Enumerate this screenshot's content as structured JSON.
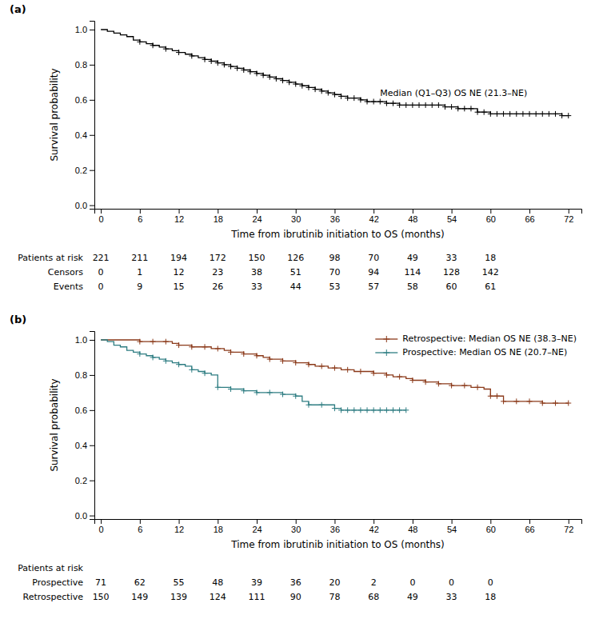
{
  "chart_data": [
    {
      "type": "step",
      "title": "(a)",
      "xlabel": "Time from ibrutinib initiation to OS (months)",
      "ylabel": "Survival probability",
      "xlim": [
        -1,
        74
      ],
      "ylim": [
        -0.02,
        1.05
      ],
      "xticks": [
        0,
        6,
        12,
        18,
        24,
        30,
        36,
        42,
        48,
        54,
        60,
        66,
        72
      ],
      "yticks": [
        {
          "value": 0.0,
          "label": "0.0"
        },
        0.2,
        0.4,
        0.6,
        0.8,
        {
          "value": 1.0,
          "label": "1.0"
        }
      ],
      "grid": false,
      "series": [
        {
          "type": "step",
          "color": "#000000",
          "x": [
            0,
            1,
            2,
            3,
            4,
            5,
            6,
            7,
            8,
            9,
            10,
            11,
            12,
            13,
            14,
            15,
            16,
            17,
            18,
            19,
            20,
            21,
            22,
            23,
            24,
            25,
            26,
            27,
            28,
            29,
            30,
            31,
            32,
            33,
            34,
            35,
            36,
            37,
            38,
            39,
            40,
            41,
            42,
            43,
            44,
            45,
            46,
            47,
            48,
            49,
            50,
            51,
            52,
            53,
            54,
            55,
            56,
            57,
            58,
            59,
            60,
            61,
            62,
            63,
            64,
            65,
            66,
            67,
            68,
            69,
            70,
            71,
            72
          ],
          "values": [
            1.0,
            0.99,
            0.98,
            0.97,
            0.96,
            0.94,
            0.93,
            0.92,
            0.91,
            0.9,
            0.89,
            0.88,
            0.87,
            0.86,
            0.85,
            0.84,
            0.83,
            0.82,
            0.81,
            0.8,
            0.79,
            0.78,
            0.77,
            0.76,
            0.75,
            0.74,
            0.73,
            0.72,
            0.71,
            0.7,
            0.69,
            0.68,
            0.67,
            0.66,
            0.65,
            0.64,
            0.63,
            0.62,
            0.61,
            0.61,
            0.6,
            0.59,
            0.59,
            0.59,
            0.58,
            0.58,
            0.57,
            0.57,
            0.57,
            0.57,
            0.57,
            0.57,
            0.57,
            0.56,
            0.56,
            0.55,
            0.55,
            0.55,
            0.53,
            0.53,
            0.52,
            0.52,
            0.52,
            0.52,
            0.52,
            0.52,
            0.52,
            0.52,
            0.52,
            0.52,
            0.52,
            0.51,
            0.51
          ]
        },
        {
          "type": "scatter",
          "marker": "plus",
          "color": "#000000",
          "x": [
            6,
            8,
            10,
            12,
            14,
            16,
            17,
            18,
            19,
            20,
            21,
            22,
            23,
            24,
            25,
            26,
            27,
            28,
            29,
            30,
            31,
            32,
            33,
            34,
            35,
            36,
            37,
            38,
            39,
            40,
            41,
            42,
            43,
            44,
            45,
            46,
            47,
            48,
            49,
            50,
            51,
            52,
            53,
            54,
            55,
            56,
            57,
            58,
            59,
            60,
            61,
            62,
            63,
            64,
            65,
            66,
            67,
            68,
            69,
            70,
            71,
            72
          ],
          "values": [
            0.93,
            0.91,
            0.89,
            0.87,
            0.85,
            0.83,
            0.82,
            0.81,
            0.8,
            0.79,
            0.78,
            0.77,
            0.76,
            0.75,
            0.74,
            0.73,
            0.72,
            0.71,
            0.7,
            0.69,
            0.68,
            0.67,
            0.66,
            0.65,
            0.64,
            0.63,
            0.62,
            0.61,
            0.61,
            0.6,
            0.59,
            0.59,
            0.59,
            0.58,
            0.58,
            0.57,
            0.57,
            0.57,
            0.57,
            0.57,
            0.57,
            0.57,
            0.56,
            0.56,
            0.55,
            0.55,
            0.55,
            0.53,
            0.53,
            0.52,
            0.52,
            0.52,
            0.52,
            0.52,
            0.52,
            0.52,
            0.52,
            0.52,
            0.52,
            0.52,
            0.51,
            0.51
          ]
        }
      ],
      "annotations": [
        {
          "text": "Median (Q1–Q3) OS NE (21.3–NE)",
          "x": 43,
          "y": 0.635
        }
      ],
      "risk_table": {
        "times": [
          0,
          6,
          12,
          18,
          24,
          30,
          36,
          42,
          48,
          54,
          60
        ],
        "rows": [
          {
            "label": "Patients at risk",
            "values": [
              221,
              211,
              194,
              172,
              150,
              126,
              98,
              70,
              49,
              33,
              18
            ]
          },
          {
            "label": "Censors",
            "values": [
              0,
              1,
              12,
              23,
              38,
              51,
              70,
              94,
              114,
              128,
              142
            ]
          },
          {
            "label": "Events",
            "values": [
              0,
              9,
              15,
              26,
              33,
              44,
              53,
              57,
              58,
              60,
              61
            ]
          }
        ]
      }
    },
    {
      "type": "step",
      "title": "(b)",
      "xlabel": "Time from ibrutinib initiation to OS (months)",
      "ylabel": "Survival probability",
      "xlim": [
        -1,
        74
      ],
      "ylim": [
        -0.02,
        1.05
      ],
      "xticks": [
        0,
        6,
        12,
        18,
        24,
        30,
        36,
        42,
        48,
        54,
        60,
        66,
        72
      ],
      "yticks": [
        {
          "value": 0.0,
          "label": "0.0"
        },
        0.2,
        0.4,
        0.6,
        0.8,
        {
          "value": 1.0,
          "label": "1.0"
        }
      ],
      "grid": false,
      "legend": "upper right",
      "series": [
        {
          "type": "step",
          "name": "Retrospective: Median OS NE (38.3–NE)",
          "color": "#8B3A1A",
          "x": [
            0,
            1,
            2,
            3,
            4,
            5,
            6,
            7,
            8,
            9,
            10,
            11,
            12,
            13,
            14,
            15,
            16,
            17,
            18,
            19,
            20,
            21,
            22,
            23,
            24,
            25,
            26,
            27,
            28,
            29,
            30,
            31,
            32,
            33,
            34,
            35,
            36,
            37,
            38,
            39,
            40,
            41,
            42,
            43,
            44,
            45,
            46,
            47,
            48,
            49,
            50,
            51,
            52,
            53,
            54,
            55,
            56,
            57,
            58,
            59,
            60,
            61,
            62,
            63,
            64,
            65,
            66,
            67,
            68,
            69,
            70,
            71,
            72
          ],
          "values": [
            1.0,
            1.0,
            1.0,
            1.0,
            1.0,
            1.0,
            0.99,
            0.99,
            0.99,
            0.99,
            0.99,
            0.98,
            0.97,
            0.97,
            0.96,
            0.96,
            0.96,
            0.95,
            0.95,
            0.94,
            0.93,
            0.93,
            0.92,
            0.92,
            0.91,
            0.9,
            0.89,
            0.89,
            0.88,
            0.88,
            0.87,
            0.87,
            0.86,
            0.85,
            0.85,
            0.84,
            0.84,
            0.83,
            0.83,
            0.82,
            0.82,
            0.82,
            0.81,
            0.81,
            0.8,
            0.79,
            0.79,
            0.78,
            0.77,
            0.77,
            0.76,
            0.76,
            0.75,
            0.75,
            0.74,
            0.74,
            0.74,
            0.73,
            0.73,
            0.72,
            0.68,
            0.68,
            0.65,
            0.65,
            0.65,
            0.65,
            0.65,
            0.65,
            0.64,
            0.64,
            0.64,
            0.64,
            0.64
          ]
        },
        {
          "type": "scatter",
          "marker": "plus",
          "color": "#8B3A1A",
          "x": [
            6,
            8,
            10,
            12,
            14,
            16,
            18,
            20,
            22,
            24,
            26,
            28,
            30,
            32,
            34,
            36,
            38,
            40,
            42,
            44,
            46,
            48,
            50,
            52,
            54,
            56,
            58,
            60,
            61,
            62,
            64,
            66,
            68,
            70,
            72
          ],
          "values": [
            0.99,
            0.99,
            0.99,
            0.97,
            0.96,
            0.96,
            0.95,
            0.93,
            0.92,
            0.91,
            0.89,
            0.88,
            0.87,
            0.86,
            0.85,
            0.84,
            0.83,
            0.82,
            0.81,
            0.8,
            0.79,
            0.77,
            0.76,
            0.75,
            0.74,
            0.74,
            0.73,
            0.68,
            0.68,
            0.65,
            0.65,
            0.65,
            0.64,
            0.64,
            0.64
          ]
        },
        {
          "type": "step",
          "name": "Prospective: Median OS NE (20.7–NE)",
          "color": "#2E7D82",
          "x": [
            0,
            1,
            2,
            3,
            4,
            5,
            6,
            7,
            8,
            9,
            10,
            11,
            12,
            13,
            14,
            15,
            16,
            17,
            18,
            19,
            20,
            21,
            22,
            23,
            24,
            25,
            26,
            27,
            28,
            29,
            30,
            31,
            32,
            33,
            34,
            35,
            36,
            37,
            38,
            39,
            40,
            41,
            42,
            43,
            44,
            45,
            46,
            47
          ],
          "values": [
            1.0,
            0.99,
            0.97,
            0.96,
            0.94,
            0.93,
            0.92,
            0.91,
            0.9,
            0.89,
            0.88,
            0.87,
            0.86,
            0.85,
            0.83,
            0.82,
            0.81,
            0.8,
            0.73,
            0.73,
            0.72,
            0.72,
            0.71,
            0.71,
            0.7,
            0.7,
            0.7,
            0.7,
            0.69,
            0.69,
            0.68,
            0.65,
            0.63,
            0.63,
            0.63,
            0.63,
            0.61,
            0.6,
            0.6,
            0.6,
            0.6,
            0.6,
            0.6,
            0.6,
            0.6,
            0.6,
            0.6,
            0.6
          ]
        },
        {
          "type": "scatter",
          "marker": "plus",
          "color": "#2E7D82",
          "x": [
            6,
            8,
            10,
            12,
            14,
            16,
            18,
            20,
            22,
            24,
            26,
            28,
            30,
            32,
            34,
            36,
            37,
            38,
            39,
            40,
            41,
            42,
            43,
            44,
            45,
            46,
            47
          ],
          "values": [
            0.92,
            0.9,
            0.88,
            0.86,
            0.83,
            0.81,
            0.73,
            0.72,
            0.71,
            0.7,
            0.7,
            0.69,
            0.68,
            0.63,
            0.63,
            0.61,
            0.6,
            0.6,
            0.6,
            0.6,
            0.6,
            0.6,
            0.6,
            0.6,
            0.6,
            0.6,
            0.6
          ]
        }
      ],
      "risk_table": {
        "header": "Patients at risk",
        "times": [
          0,
          6,
          12,
          18,
          24,
          30,
          36,
          42,
          48,
          54,
          60
        ],
        "rows": [
          {
            "label": "Prospective",
            "values": [
              71,
              62,
              55,
              48,
              39,
              36,
              20,
              2,
              0,
              0,
              0
            ]
          },
          {
            "label": "Retrospective",
            "values": [
              150,
              149,
              139,
              124,
              111,
              90,
              78,
              68,
              49,
              33,
              18
            ]
          }
        ]
      }
    }
  ]
}
